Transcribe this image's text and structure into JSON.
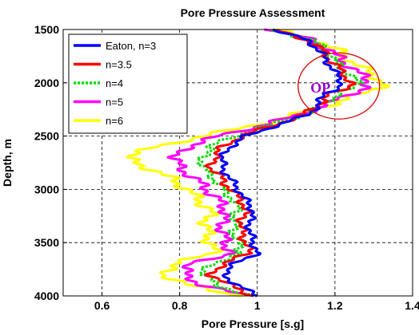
{
  "chart_data": {
    "type": "line",
    "title": "Pore Pressure Assessment",
    "xlabel": "Pore Pressure [s.g]",
    "ylabel": "Depth, m",
    "xlim": [
      0.5,
      1.4
    ],
    "ylim": [
      1500,
      4000
    ],
    "y_reversed": true,
    "xticks": [
      0.6,
      0.8,
      1,
      1.2,
      1.4
    ],
    "yticks": [
      1500,
      2000,
      2500,
      3000,
      3500,
      4000
    ],
    "xtick_labels": [
      "0.6",
      "0.8",
      "1",
      "1.2",
      "1.4"
    ],
    "ytick_labels": [
      "1500",
      "2000",
      "2500",
      "3000",
      "3500",
      "4000"
    ],
    "grid": true,
    "legend_position": "top-left",
    "depth": [
      1500,
      1600,
      1700,
      1800,
      1900,
      2000,
      2050,
      2100,
      2200,
      2300,
      2400,
      2500,
      2600,
      2700,
      2800,
      2900,
      3000,
      3100,
      3200,
      3300,
      3400,
      3500,
      3600,
      3700,
      3800,
      3900,
      4000
    ],
    "series": [
      {
        "name": "Eaton, n=3",
        "color": "#0000ff",
        "dash": "solid",
        "values": [
          1.04,
          1.13,
          1.16,
          1.18,
          1.2,
          1.22,
          1.21,
          1.17,
          1.16,
          1.13,
          1.05,
          0.97,
          0.93,
          0.91,
          0.91,
          0.93,
          0.95,
          0.97,
          0.99,
          0.98,
          0.98,
          0.99,
          1.0,
          0.94,
          0.91,
          0.95,
          1.0
        ]
      },
      {
        "name": "n=3.5",
        "color": "#ff0000",
        "dash": "solid",
        "values": [
          1.04,
          1.13,
          1.17,
          1.19,
          1.22,
          1.24,
          1.23,
          1.19,
          1.16,
          1.12,
          1.04,
          0.96,
          0.91,
          0.89,
          0.88,
          0.91,
          0.93,
          0.96,
          0.97,
          0.96,
          0.96,
          0.97,
          0.98,
          0.91,
          0.88,
          0.93,
          0.99
        ]
      },
      {
        "name": "n=4",
        "color": "#00dd00",
        "dash": "dotted",
        "values": [
          1.04,
          1.14,
          1.18,
          1.2,
          1.23,
          1.26,
          1.25,
          1.21,
          1.17,
          1.12,
          1.03,
          0.94,
          0.88,
          0.86,
          0.86,
          0.89,
          0.91,
          0.94,
          0.95,
          0.94,
          0.94,
          0.95,
          0.96,
          0.88,
          0.86,
          0.9,
          0.98
        ]
      },
      {
        "name": "n=5",
        "color": "#ff00ff",
        "dash": "solid",
        "values": [
          1.04,
          1.14,
          1.19,
          1.22,
          1.26,
          1.29,
          1.28,
          1.24,
          1.18,
          1.11,
          1.01,
          0.9,
          0.82,
          0.79,
          0.8,
          0.84,
          0.87,
          0.9,
          0.92,
          0.91,
          0.91,
          0.92,
          0.93,
          0.83,
          0.81,
          0.86,
          0.97
        ]
      },
      {
        "name": "n=6",
        "color": "#ffff00",
        "dash": "solid",
        "values": [
          1.04,
          1.15,
          1.21,
          1.24,
          1.29,
          1.32,
          1.31,
          1.27,
          1.19,
          1.1,
          0.99,
          0.86,
          0.74,
          0.66,
          0.72,
          0.78,
          0.82,
          0.85,
          0.88,
          0.87,
          0.87,
          0.88,
          0.89,
          0.78,
          0.76,
          0.82,
          0.96
        ]
      }
    ],
    "annotation": {
      "text": "OP",
      "color": "#9900cc",
      "ellipse_color": "#dd0000",
      "center": [
        1.21,
        2030
      ],
      "rx": 0.105,
      "ry": 310
    }
  }
}
